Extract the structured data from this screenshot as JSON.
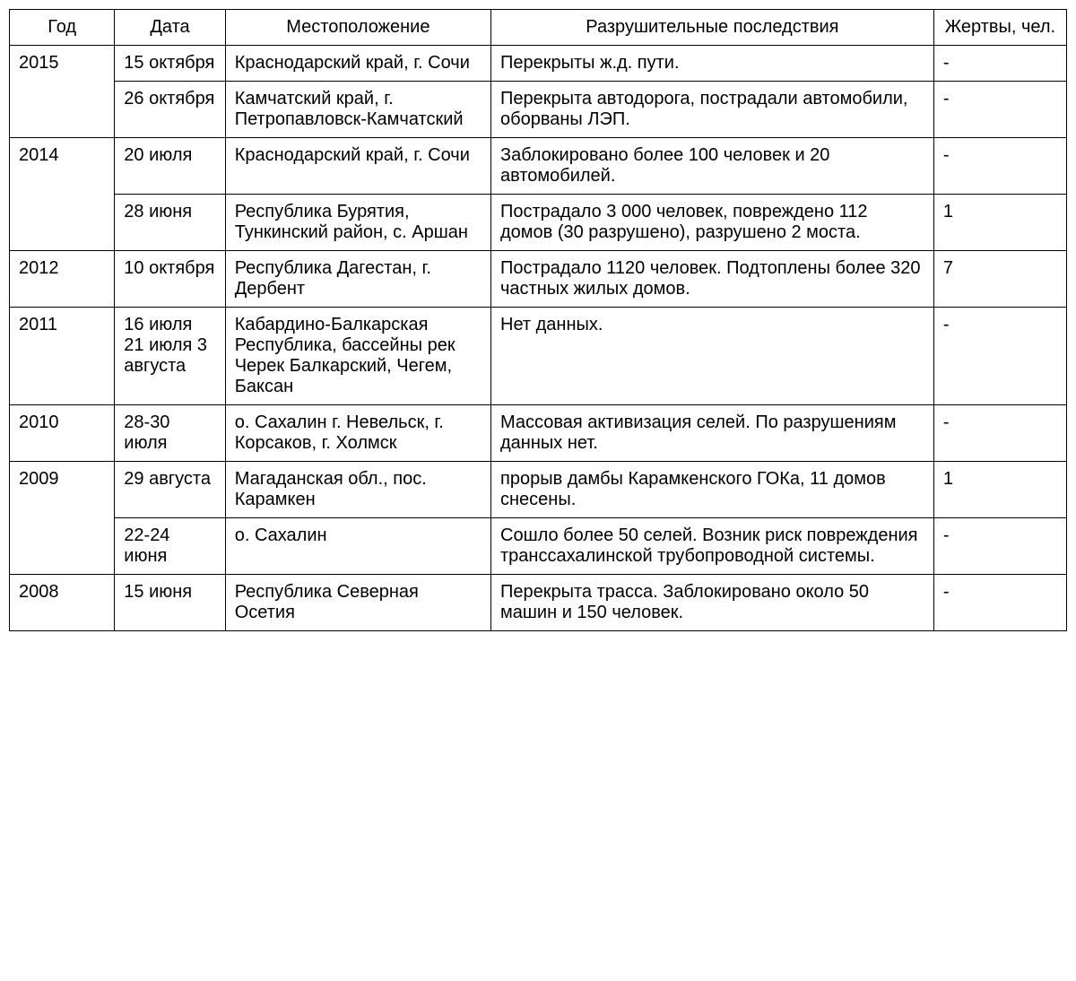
{
  "table": {
    "type": "table",
    "background_color": "#ffffff",
    "border_color": "#000000",
    "text_color": "#000000",
    "font_family": "Arial",
    "font_size": 20,
    "columns": [
      {
        "key": "year",
        "label": "Год",
        "width_pct": 9.5,
        "align": "left"
      },
      {
        "key": "date",
        "label": "Дата",
        "width_pct": 10,
        "align": "left"
      },
      {
        "key": "location",
        "label": "Местоположение",
        "width_pct": 24,
        "align": "left"
      },
      {
        "key": "consequences",
        "label": "Разрушительные последствия",
        "width_pct": 40,
        "align": "left"
      },
      {
        "key": "casualties",
        "label": "Жертвы, чел.",
        "width_pct": 12,
        "align": "left"
      }
    ],
    "groups": [
      {
        "year": "2015",
        "rows": [
          {
            "date": "15 октября",
            "location": "Краснодарский край, г. Сочи",
            "consequences": "Перекрыты ж.д. пути.",
            "casualties": "-"
          },
          {
            "date": "26 октября",
            "location": "Камчатский край, г. Петропавловск-Камчатский",
            "consequences": "Перекрыта автодорога, пострадали автомобили, оборваны ЛЭП.",
            "casualties": "-"
          }
        ]
      },
      {
        "year": "2014",
        "rows": [
          {
            "date": "20 июля",
            "location": "Краснодарский край, г. Сочи",
            "consequences": "Заблокировано более 100 человек и 20 автомобилей.",
            "casualties": "-"
          },
          {
            "date": "28 июня",
            "location": "Республика Бурятия, Тункинский район, с. Аршан",
            "consequences": "Пострадало 3 000 человек, повреждено 112 домов (30 разрушено), разрушено 2 моста.",
            "casualties": "1"
          }
        ]
      },
      {
        "year": "2012",
        "rows": [
          {
            "date": "10 октября",
            "location": "Республика Дагестан, г. Дербент",
            "consequences": "Пострадало 1120 человек. Подтоплены более 320 частных жилых домов.",
            "casualties": "7"
          }
        ]
      },
      {
        "year": "2011",
        "rows": [
          {
            "date": "16 июля 21 июля 3 августа",
            "location": "Кабардино-Балкарская Республика, бассейны рек Черек Балкарский, Чегем, Баксан",
            "consequences": "Нет данных.",
            "casualties": "-"
          }
        ]
      },
      {
        "year": "2010",
        "rows": [
          {
            "date": "28-30 июля",
            "location": "о. Сахалин г. Невельск, г. Корсаков, г. Холмск",
            "consequences": "Массовая активизация селей. По разрушениям данных нет.",
            "casualties": "-"
          }
        ]
      },
      {
        "year": "2009",
        "rows": [
          {
            "date": "29 августа",
            "location": "Магаданская обл., пос. Карамкен",
            "consequences": "прорыв дамбы Карамкенского ГОКа, 11 домов снесены.",
            "casualties": "1"
          },
          {
            "date": "22-24 июня",
            "location": "о. Сахалин",
            "consequences": "Сошло более 50 селей. Возник риск повреждения транссахалинской трубопроводной системы.",
            "casualties": "-"
          }
        ]
      },
      {
        "year": "2008",
        "rows": [
          {
            "date": "15 июня",
            "location": "Республика Северная Осетия",
            "consequences": "Перекрыта трасса. Заблокировано около 50 машин и 150 человек.",
            "casualties": "-"
          }
        ]
      }
    ]
  }
}
